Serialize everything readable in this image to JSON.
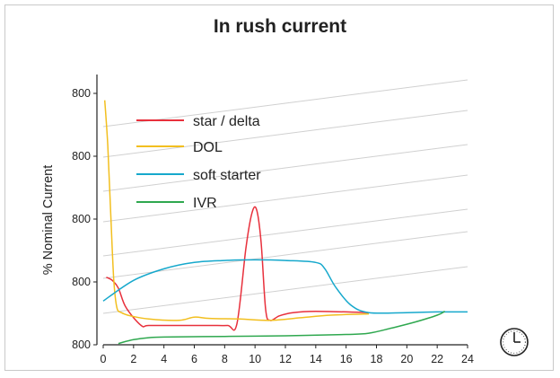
{
  "chart_data": {
    "type": "line",
    "title": "In rush current",
    "ylabel": "% Nominal Current",
    "xlabel": "",
    "xlim": [
      0,
      24
    ],
    "x_ticks": [
      0,
      2,
      4,
      6,
      8,
      10,
      12,
      14,
      16,
      18,
      20,
      22,
      24
    ],
    "y_tick_labels": [
      "800",
      "800",
      "800",
      "800",
      "800",
      "800"
    ],
    "grid": "diagonal light lines",
    "legend_placement": "top-left",
    "series": [
      {
        "name": "star / delta",
        "color": "#e8303c",
        "points": [
          [
            0.2,
            105
          ],
          [
            0.6,
            100
          ],
          [
            1,
            88
          ],
          [
            1.5,
            58
          ],
          [
            2.5,
            30
          ],
          [
            3,
            30
          ],
          [
            5,
            30
          ],
          [
            7,
            30
          ],
          [
            8.2,
            30
          ],
          [
            8.8,
            32
          ],
          [
            9.4,
            150
          ],
          [
            9.8,
            205
          ],
          [
            10.1,
            210
          ],
          [
            10.4,
            160
          ],
          [
            10.7,
            55
          ],
          [
            11,
            38
          ],
          [
            11.6,
            45
          ],
          [
            12.5,
            50
          ],
          [
            14,
            52
          ],
          [
            17.5,
            50
          ]
        ]
      },
      {
        "name": "DOL",
        "color": "#f2bf1f",
        "points": [
          [
            0.1,
            380
          ],
          [
            0.3,
            310
          ],
          [
            0.5,
            200
          ],
          [
            0.7,
            100
          ],
          [
            0.9,
            58
          ],
          [
            1.2,
            50
          ],
          [
            1.8,
            45
          ],
          [
            3,
            40
          ],
          [
            5,
            38
          ],
          [
            6,
            43
          ],
          [
            7,
            41
          ],
          [
            9,
            40
          ],
          [
            11,
            38
          ],
          [
            13,
            42
          ],
          [
            15,
            46
          ],
          [
            17.5,
            48
          ]
        ]
      },
      {
        "name": "soft starter",
        "color": "#16a8cc",
        "points": [
          [
            0,
            68
          ],
          [
            2,
            100
          ],
          [
            4,
            118
          ],
          [
            6,
            128
          ],
          [
            8,
            131
          ],
          [
            10,
            132
          ],
          [
            12,
            131
          ],
          [
            14,
            128
          ],
          [
            14.6,
            118
          ],
          [
            15.3,
            90
          ],
          [
            16.3,
            62
          ],
          [
            17.5,
            50
          ],
          [
            20,
            50
          ],
          [
            22,
            51
          ],
          [
            24,
            51
          ]
        ]
      },
      {
        "name": "IVR",
        "color": "#2fa84f",
        "points": [
          [
            1,
            2
          ],
          [
            2,
            8
          ],
          [
            3,
            11
          ],
          [
            4,
            12
          ],
          [
            8,
            13
          ],
          [
            12,
            14
          ],
          [
            16,
            16
          ],
          [
            17.5,
            18
          ],
          [
            19,
            26
          ],
          [
            20.5,
            35
          ],
          [
            22,
            46
          ],
          [
            22.5,
            52
          ]
        ]
      }
    ]
  },
  "colors": {
    "axis": "#222222",
    "grid": "#d0d0d0",
    "frame": "#c9c9c9"
  },
  "icons": {
    "clock": "clock-icon"
  }
}
